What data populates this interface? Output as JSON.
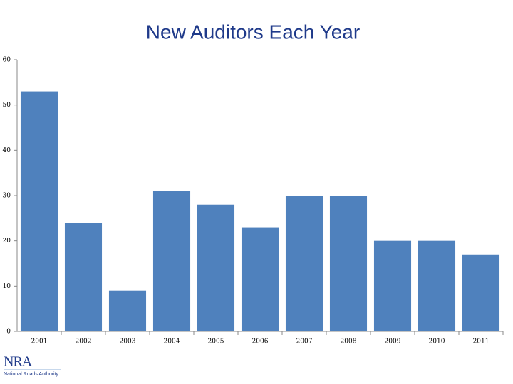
{
  "chart_data": {
    "type": "bar",
    "title": "New Auditors Each Year",
    "categories": [
      "2001",
      "2002",
      "2003",
      "2004",
      "2005",
      "2006",
      "2007",
      "2008",
      "2009",
      "2010",
      "2011"
    ],
    "values": [
      53,
      24,
      9,
      31,
      28,
      23,
      30,
      30,
      20,
      20,
      17
    ],
    "color": "#4f81bd",
    "ylim": [
      0,
      60
    ],
    "yticks": [
      0,
      10,
      20,
      30,
      40,
      50,
      60
    ],
    "grid": false
  },
  "logo": {
    "mark": "NRA",
    "name": "National Roads Authority"
  }
}
